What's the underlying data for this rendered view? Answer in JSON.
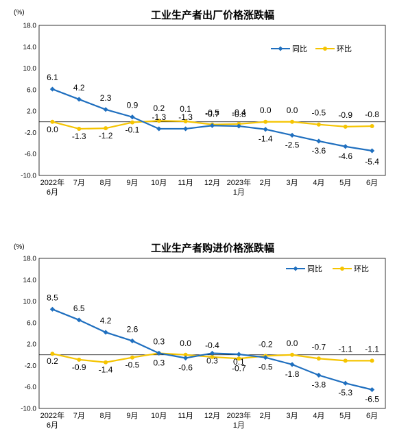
{
  "charts": [
    {
      "title": "工业生产者出厂价格涨跌幅",
      "unit": "(%)",
      "chart_data": {
        "type": "line",
        "title": "工业生产者出厂价格涨跌幅",
        "ylabel": "(%)",
        "categories": [
          [
            "2022年",
            "6月"
          ],
          [
            "7月"
          ],
          [
            "8月"
          ],
          [
            "9月"
          ],
          [
            "10月"
          ],
          [
            "11月"
          ],
          [
            "12月"
          ],
          [
            "2023年",
            "1月"
          ],
          [
            "2月"
          ],
          [
            "3月"
          ],
          [
            "4月"
          ],
          [
            "5月"
          ],
          [
            "6月"
          ]
        ],
        "series": [
          {
            "name": "同比",
            "color": "#1f6fbf",
            "marker": "diamond",
            "values": [
              6.1,
              4.2,
              2.3,
              0.9,
              -1.3,
              -1.3,
              -0.7,
              -0.8,
              -1.4,
              -2.5,
              -3.6,
              -4.6,
              -5.4
            ]
          },
          {
            "name": "环比",
            "color": "#f5c400",
            "marker": "circle",
            "values": [
              0.0,
              -1.3,
              -1.2,
              -0.1,
              0.2,
              0.1,
              -0.5,
              -0.4,
              0.0,
              0.0,
              -0.5,
              -0.9,
              -0.8
            ]
          }
        ],
        "label_texts": {
          "同比": [
            "6.1",
            "4.2",
            "2.3",
            "0.9",
            "-1.3",
            "-1.3",
            "-0.7",
            "-0.8",
            "-1.4",
            "-2.5",
            "-3.6",
            "-4.6",
            "-5.4"
          ],
          "环比": [
            "0.0",
            "-1.3",
            "-1.2",
            "-0.1",
            "0.2",
            "0.1",
            "-0.5",
            "-0.4",
            "0.0",
            "0.0",
            "-0.5",
            "-0.9",
            "-0.8"
          ]
        },
        "yticks": [
          "18.0",
          "14.0",
          "10.0",
          "6.0",
          "2.0",
          "-2.0",
          "-6.0",
          "-10.0"
        ],
        "ylim": [
          -10,
          18
        ],
        "legend": "top-right"
      }
    },
    {
      "title": "工业生产者购进价格涨跌幅",
      "unit": "(%)",
      "chart_data": {
        "type": "line",
        "title": "工业生产者购进价格涨跌幅",
        "ylabel": "(%)",
        "categories": [
          [
            "2022年",
            "6月"
          ],
          [
            "7月"
          ],
          [
            "8月"
          ],
          [
            "9月"
          ],
          [
            "10月"
          ],
          [
            "11月"
          ],
          [
            "12月"
          ],
          [
            "2023年",
            "1月"
          ],
          [
            "2月"
          ],
          [
            "3月"
          ],
          [
            "4月"
          ],
          [
            "5月"
          ],
          [
            "6月"
          ]
        ],
        "series": [
          {
            "name": "同比",
            "color": "#1f6fbf",
            "marker": "diamond",
            "values": [
              8.5,
              6.5,
              4.2,
              2.6,
              0.3,
              -0.6,
              0.3,
              0.1,
              -0.5,
              -1.8,
              -3.8,
              -5.3,
              -6.5
            ]
          },
          {
            "name": "环比",
            "color": "#f5c400",
            "marker": "circle",
            "values": [
              0.2,
              -0.9,
              -1.4,
              -0.5,
              0.3,
              0.0,
              -0.4,
              -0.7,
              -0.2,
              0.0,
              -0.7,
              -1.1,
              -1.1
            ]
          }
        ],
        "label_texts": {
          "同比": [
            "8.5",
            "6.5",
            "4.2",
            "2.6",
            "0.3",
            "-0.6",
            "0.3",
            "0.1",
            "-0.5",
            "-1.8",
            "-3.8",
            "-5.3",
            "-6.5"
          ],
          "环比": [
            "0.2",
            "-0.9",
            "-1.4",
            "-0.5",
            "0.3",
            "0.0",
            "-0.4",
            "-0.7",
            "-0.2",
            "0.0",
            "-0.7",
            "-1.1",
            "-1.1"
          ]
        },
        "yticks": [
          "18.0",
          "14.0",
          "10.0",
          "6.0",
          "2.0",
          "-2.0",
          "-6.0",
          "-10.0"
        ],
        "ylim": [
          -10,
          18
        ],
        "legend": "top-right"
      }
    }
  ]
}
